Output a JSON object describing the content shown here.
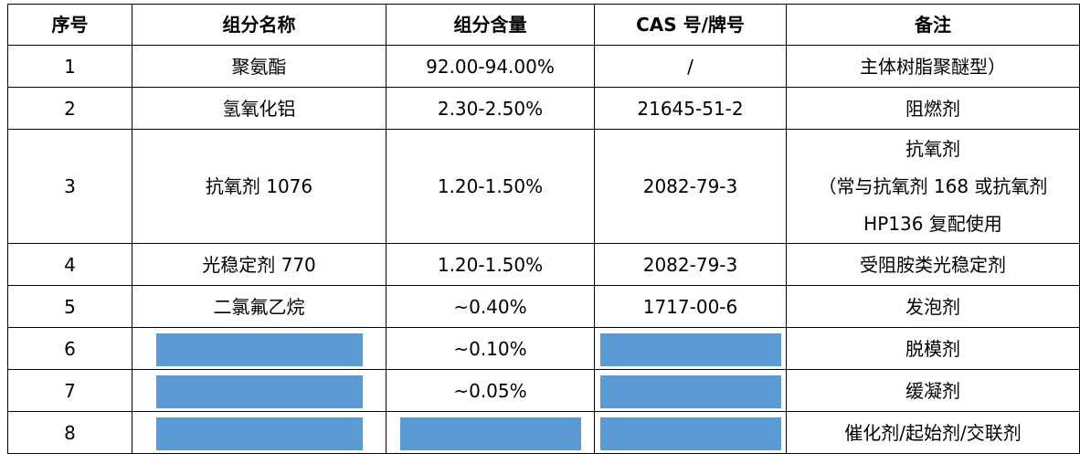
{
  "headers": [
    "序号",
    "组分名称",
    "组分含量",
    "CAS 号/牌号",
    "备注"
  ],
  "rows": [
    {
      "no": "1",
      "name": "聚氨酯",
      "content": "92.00-94.00%",
      "cas": "/",
      "note": "主体树脂聚醚型）"
    },
    {
      "no": "2",
      "name": "氢氧化铝",
      "content": "2.30-2.50%",
      "cas": "21645-51-2",
      "note": "阻燃剂"
    },
    {
      "no": "3",
      "name": "抗氧剂 1076",
      "content": "1.20-1.50%",
      "cas": "2082-79-3",
      "note_lines": [
        "抗氧剂",
        "（常与抗氧剂 168 或抗氧剂",
        "HP136 复配使用"
      ]
    },
    {
      "no": "4",
      "name": "光稳定剂 770",
      "content": "1.20-1.50%",
      "cas": "2082-79-3",
      "note": "受阻胺类光稳定剂"
    },
    {
      "no": "5",
      "name": "二氯氟乙烷",
      "content": "~0.40%",
      "cas": "1717-00-6",
      "note": "发泡剂"
    },
    {
      "no": "6",
      "name": "",
      "content": "~0.10%",
      "cas": "",
      "note": "脱模剂"
    },
    {
      "no": "7",
      "name": "",
      "content": "~0.05%",
      "cas": "",
      "note": "缓凝剂"
    },
    {
      "no": "8",
      "name": "",
      "content": "",
      "cas": "",
      "note": "催化剂/起始剂/交联剂"
    }
  ],
  "redaction_color": "#5b9bd5"
}
